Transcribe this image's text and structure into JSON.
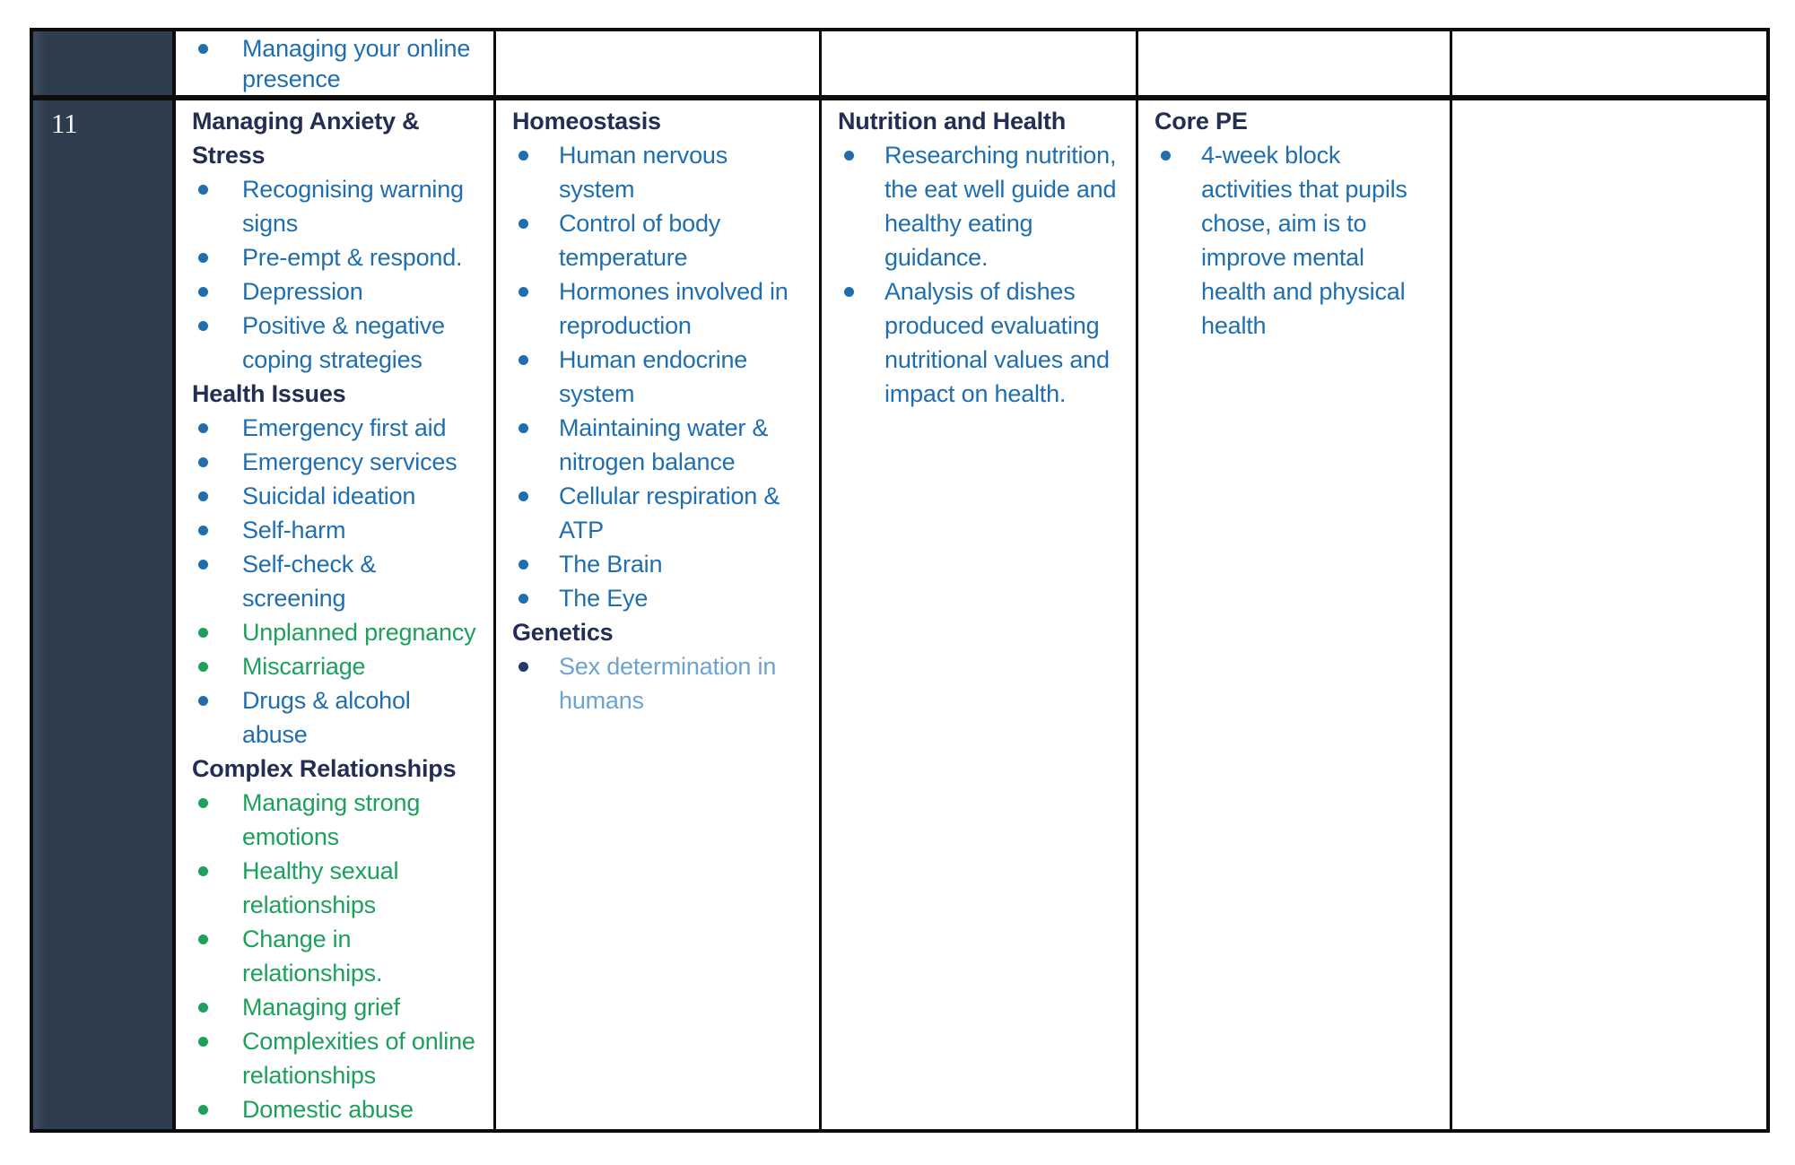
{
  "colors": {
    "page_bg": "#ffffff",
    "border": "#0d0d0d",
    "year_bg": "#2e3d4e",
    "year_text": "#f5f7fa",
    "heading": "#232e52",
    "blue": "#1e6eb0",
    "green": "#1ca05c",
    "lightblue": "#6ba3d1",
    "navy": "#223a66"
  },
  "table": {
    "rows": [
      {
        "year_label": "",
        "cells": [
          {
            "items": [
              {
                "type": "bullet",
                "color": "blue",
                "text": "Managing your online presence"
              }
            ]
          },
          {
            "items": []
          },
          {
            "items": []
          },
          {
            "items": []
          },
          {
            "items": []
          }
        ]
      },
      {
        "year_label": "11",
        "cells": [
          {
            "items": [
              {
                "type": "heading",
                "text": "Managing Anxiety & Stress"
              },
              {
                "type": "bullet",
                "color": "blue",
                "text": "Recognising warning signs"
              },
              {
                "type": "bullet",
                "color": "blue",
                "text": "Pre-empt & respond."
              },
              {
                "type": "bullet",
                "color": "blue",
                "text": "Depression"
              },
              {
                "type": "bullet",
                "color": "blue",
                "text": "Positive & negative coping strategies"
              },
              {
                "type": "heading",
                "text": "Health Issues"
              },
              {
                "type": "bullet",
                "color": "blue",
                "text": "Emergency first aid"
              },
              {
                "type": "bullet",
                "color": "blue",
                "text": "Emergency services"
              },
              {
                "type": "bullet",
                "color": "blue",
                "text": "Suicidal ideation"
              },
              {
                "type": "bullet",
                "color": "blue",
                "text": "Self-harm"
              },
              {
                "type": "bullet",
                "color": "blue",
                "text": "Self-check & screening"
              },
              {
                "type": "bullet",
                "color": "green",
                "text": "Unplanned pregnancy"
              },
              {
                "type": "bullet",
                "color": "green",
                "text": "Miscarriage"
              },
              {
                "type": "bullet",
                "color": "blue",
                "text": "Drugs & alcohol abuse"
              },
              {
                "type": "heading",
                "text": "Complex Relationships"
              },
              {
                "type": "bullet",
                "color": "green",
                "text": "Managing strong emotions"
              },
              {
                "type": "bullet",
                "color": "green",
                "text": "Healthy sexual relationships"
              },
              {
                "type": "bullet",
                "color": "green",
                "text": "Change in relationships."
              },
              {
                "type": "bullet",
                "color": "green",
                "text": "Managing grief"
              },
              {
                "type": "bullet",
                "color": "green",
                "text": "Complexities of online relationships"
              },
              {
                "type": "bullet",
                "color": "green",
                "text": "Domestic abuse"
              }
            ]
          },
          {
            "items": [
              {
                "type": "heading",
                "text": "Homeostasis"
              },
              {
                "type": "bullet",
                "color": "blue",
                "text": "Human nervous system"
              },
              {
                "type": "bullet",
                "color": "blue",
                "text": "Control of body temperature"
              },
              {
                "type": "bullet",
                "color": "blue",
                "text": "Hormones involved in reproduction"
              },
              {
                "type": "bullet",
                "color": "blue",
                "text": "Human endocrine system"
              },
              {
                "type": "bullet",
                "color": "blue",
                "text": "Maintaining water & nitrogen balance"
              },
              {
                "type": "bullet",
                "color": "blue",
                "text": "Cellular respiration & ATP"
              },
              {
                "type": "bullet",
                "color": "blue",
                "text": "The Brain"
              },
              {
                "type": "bullet",
                "color": "blue",
                "text": "The Eye"
              },
              {
                "type": "heading",
                "text": "Genetics"
              },
              {
                "type": "bullet",
                "color": "lightblue",
                "bullet_color": "navy",
                "text": "Sex determination in humans"
              }
            ]
          },
          {
            "items": [
              {
                "type": "heading",
                "text": "Nutrition and Health"
              },
              {
                "type": "bullet",
                "color": "blue",
                "text": "Researching nutrition, the eat well guide and healthy eating guidance."
              },
              {
                "type": "bullet",
                "color": "blue",
                "text": "Analysis of dishes produced evaluating nutritional values and impact on health."
              }
            ]
          },
          {
            "items": [
              {
                "type": "heading",
                "text": "Core PE"
              },
              {
                "type": "bullet",
                "color": "blue",
                "text": "4-week block activities that pupils chose, aim is to improve mental health and physical health"
              }
            ]
          },
          {
            "items": []
          }
        ]
      }
    ]
  }
}
